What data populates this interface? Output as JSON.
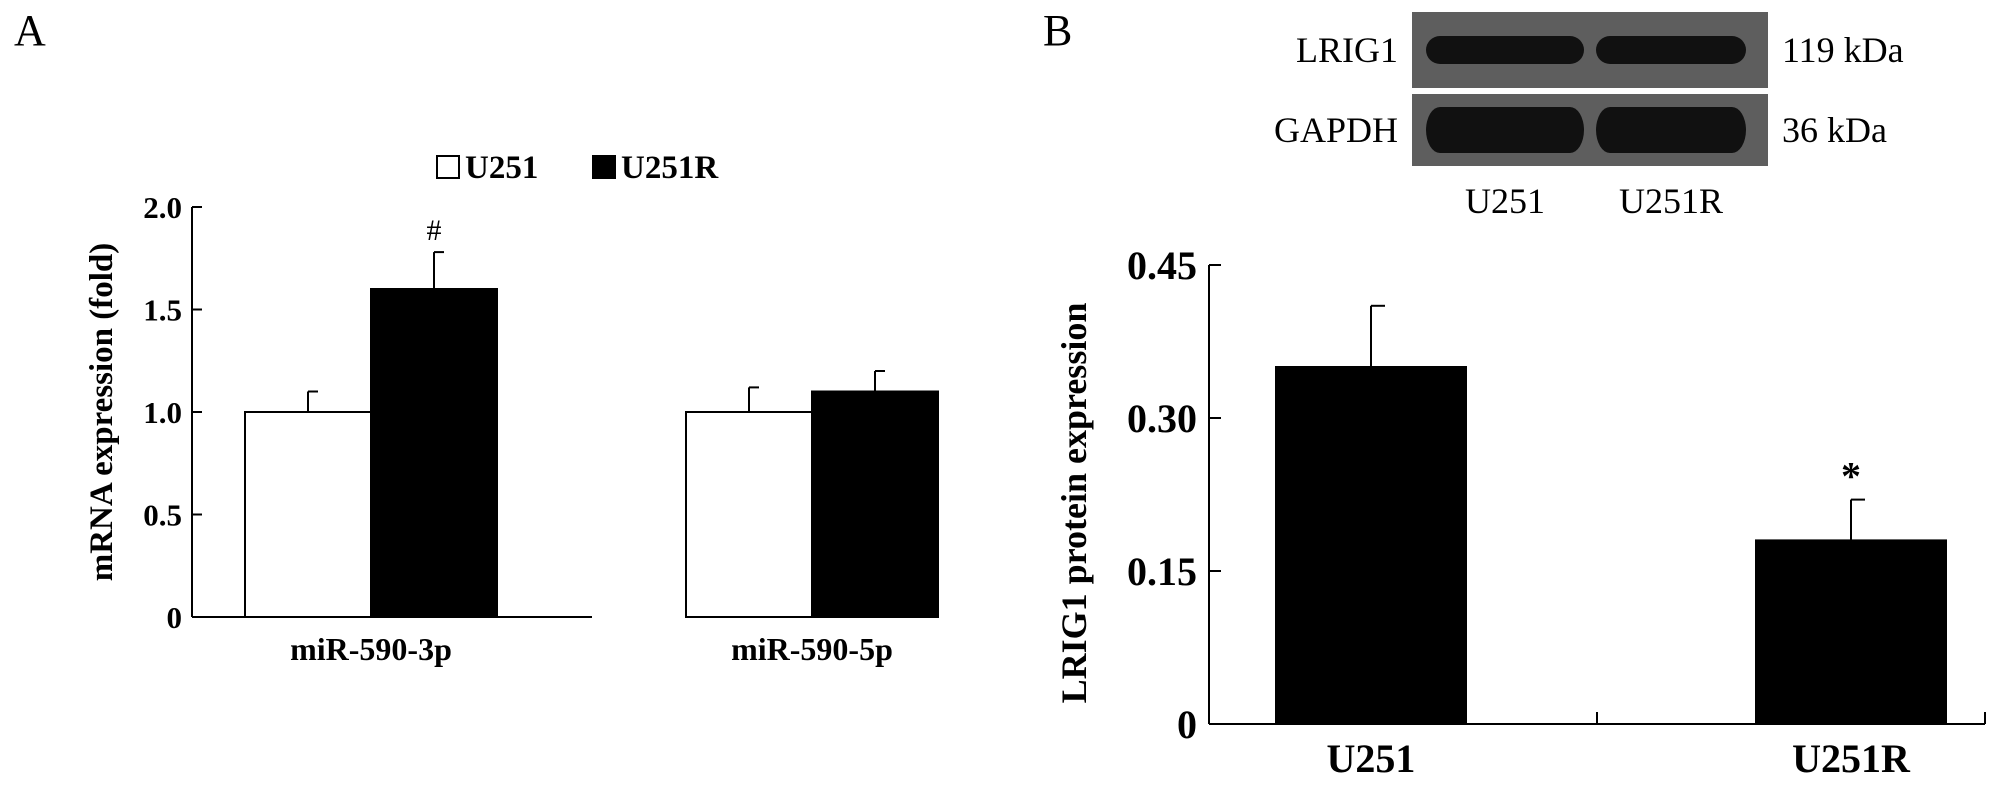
{
  "panels": {
    "a_letter": "A",
    "b_letter": "B"
  },
  "chart_data": [
    {
      "type": "bar",
      "panel": "A",
      "ylabel": "mRNA expression (fold)",
      "ylim": [
        0,
        2.0
      ],
      "yticks": [
        0,
        0.5,
        1.0,
        1.5,
        2.0
      ],
      "ytick_labels": [
        "0",
        "0.5",
        "1.0",
        "1.5",
        "2.0"
      ],
      "categories": [
        "miR-590-3p",
        "miR-590-5p"
      ],
      "legend_position": "top",
      "series": [
        {
          "name": "U251",
          "color": "#ffffff",
          "values": [
            1.0,
            1.0
          ],
          "errors": [
            0.1,
            0.12
          ]
        },
        {
          "name": "U251R",
          "color": "#000000",
          "values": [
            1.6,
            1.1
          ],
          "errors": [
            0.18,
            0.1
          ]
        }
      ],
      "annotations": [
        {
          "text": "#",
          "series": 1,
          "category": 0
        }
      ]
    },
    {
      "type": "bar",
      "panel": "B",
      "ylabel": "LRIG1 protein expression",
      "ylim": [
        0,
        0.45
      ],
      "yticks": [
        0,
        0.15,
        0.3,
        0.45
      ],
      "ytick_labels": [
        "0",
        "0.15",
        "0.30",
        "0.45"
      ],
      "categories": [
        "U251",
        "U251R"
      ],
      "series": [
        {
          "color": "#000000",
          "values": [
            0.35,
            0.18
          ],
          "errors": [
            0.06,
            0.04
          ]
        }
      ],
      "annotations": [
        {
          "text": "*",
          "category": 1
        }
      ]
    }
  ],
  "blot": {
    "rows": [
      {
        "protein": "LRIG1",
        "size": "119 kDa"
      },
      {
        "protein": "GAPDH",
        "size": "36 kDa"
      }
    ],
    "lanes": [
      "U251",
      "U251R"
    ]
  }
}
